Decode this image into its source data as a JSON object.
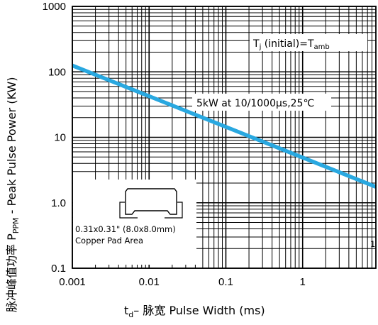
{
  "chart_data": {
    "type": "line",
    "title": "",
    "xscale": "log",
    "yscale": "log",
    "xlim": [
      0.001,
      9
    ],
    "ylim": [
      0.1,
      1000
    ],
    "xticks": [
      {
        "value": 0.001,
        "label": "0.001"
      },
      {
        "value": 0.01,
        "label": "0.01"
      },
      {
        "value": 0.1,
        "label": "0.1"
      },
      {
        "value": 1,
        "label": "1"
      }
    ],
    "yticks": [
      {
        "value": 1000,
        "label": "1000"
      },
      {
        "value": 100,
        "label": "100"
      },
      {
        "value": 10,
        "label": "10"
      },
      {
        "value": 1,
        "label": "1.0"
      },
      {
        "value": 0.1,
        "label": "0.1"
      }
    ],
    "xlabel": {
      "prefix": "t",
      "sub": "d",
      "rest": "– 脉宽 Pulse Width (ms)"
    },
    "ylabel": {
      "prefix": "脉冲峰值功率 P",
      "sub": "PPM",
      "rest": " - Peak Pulse Power (KW)"
    },
    "grid": true,
    "series": [
      {
        "color": "#29a8e0",
        "x": [
          0.001,
          9
        ],
        "y": [
          125,
          1.75
        ]
      }
    ],
    "annotations": {
      "tj": {
        "main": "T",
        "sub1": "j",
        "mid": " (initial)=T",
        "sub2": "amb"
      },
      "rating": "5kW at 10/1000µs,25℃",
      "inset_line1": "0.31x0.31\" (8.0x8.0mm)",
      "inset_line2": "Copper Pad Area",
      "edge_mark": "1"
    }
  }
}
